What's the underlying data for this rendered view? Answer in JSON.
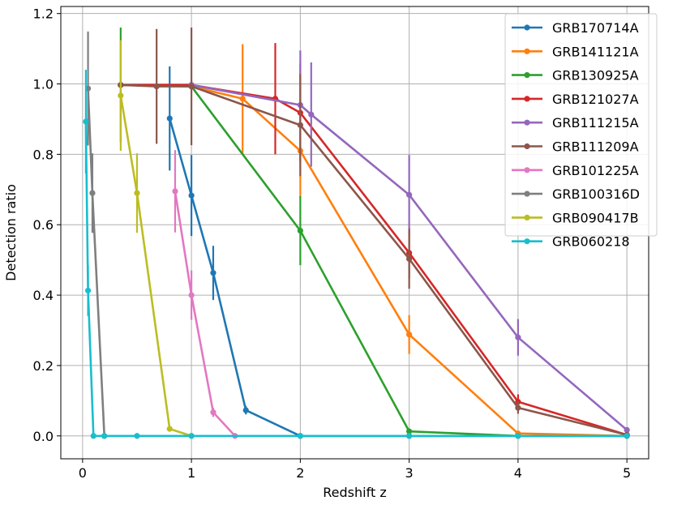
{
  "chart_data": {
    "type": "line",
    "title": "",
    "xlabel": "Redshift z",
    "ylabel": "Detection ratio",
    "xlim": [
      -0.2,
      5.2
    ],
    "ylim": [
      -0.065,
      1.22
    ],
    "xticks": [
      0,
      1,
      2,
      3,
      4,
      5
    ],
    "yticks": [
      0.0,
      0.2,
      0.4,
      0.6,
      0.8,
      1.0,
      1.2
    ],
    "xtick_labels": [
      "0",
      "1",
      "2",
      "3",
      "4",
      "5"
    ],
    "ytick_labels": [
      "0.0",
      "0.2",
      "0.4",
      "0.6",
      "0.8",
      "1.0",
      "1.2"
    ],
    "grid": true,
    "legend_position": "top-right",
    "series": [
      {
        "name": "GRB170714A",
        "color": "#1f77b4",
        "x": [
          0.8,
          1.0,
          1.2,
          1.5,
          2.0,
          3.0,
          4.0,
          5.0
        ],
        "y": [
          0.902,
          0.683,
          0.463,
          0.073,
          0.0,
          0.0,
          0.0,
          0.0
        ],
        "err": [
          0.148,
          0.115,
          0.077,
          0.012,
          0,
          0,
          0,
          0
        ]
      },
      {
        "name": "GRB141121A",
        "color": "#ff7f0e",
        "x": [
          0.35,
          1.0,
          1.47,
          2.0,
          3.0,
          4.0,
          5.0
        ],
        "y": [
          0.997,
          0.993,
          0.958,
          0.81,
          0.288,
          0.007,
          0.0
        ],
        "err": [
          0.003,
          0.007,
          0.155,
          0.135,
          0.055,
          0.004,
          0
        ]
      },
      {
        "name": "GRB130925A",
        "color": "#2ca02c",
        "x": [
          0.35,
          1.0,
          2.0,
          3.0,
          4.0,
          5.0
        ],
        "y": [
          0.997,
          0.993,
          0.583,
          0.013,
          0.0,
          0.0
        ],
        "err": [
          0.163,
          0.007,
          0.098,
          0.004,
          0,
          0
        ]
      },
      {
        "name": "GRB121027A",
        "color": "#d62728",
        "x": [
          0.35,
          1.0,
          1.77,
          2.0,
          3.0,
          4.0,
          5.0
        ],
        "y": [
          0.997,
          0.997,
          0.958,
          0.918,
          0.52,
          0.097,
          0.003
        ],
        "err": [
          0.003,
          0.003,
          0.158,
          0.14,
          0.072,
          0.021,
          0.002
        ]
      },
      {
        "name": "GRB111215A",
        "color": "#9467bd",
        "x": [
          1.0,
          2.0,
          2.1,
          3.0,
          4.0,
          5.0
        ],
        "y": [
          0.997,
          0.94,
          0.913,
          0.685,
          0.28,
          0.017
        ],
        "err": [
          0.003,
          0.155,
          0.148,
          0.113,
          0.052,
          0.005
        ]
      },
      {
        "name": "GRB111209A",
        "color": "#8c564b",
        "x": [
          0.35,
          0.68,
          1.0,
          2.0,
          3.0,
          4.0,
          5.0
        ],
        "y": [
          0.997,
          0.993,
          0.993,
          0.883,
          0.503,
          0.08,
          0.003
        ],
        "err": [
          0.003,
          0.163,
          0.167,
          0.145,
          0.085,
          0.017,
          0.002
        ]
      },
      {
        "name": "GRB101225A",
        "color": "#e377c2",
        "x": [
          0.85,
          1.0,
          1.2,
          1.4
        ],
        "y": [
          0.695,
          0.4,
          0.067,
          0.0
        ],
        "err": [
          0.117,
          0.07,
          0.013,
          0
        ]
      },
      {
        "name": "GRB100316D",
        "color": "#7f7f7f",
        "x": [
          0.05,
          0.09,
          0.2
        ],
        "y": [
          0.987,
          0.69,
          0.0
        ],
        "err": [
          0.162,
          0.113,
          0
        ]
      },
      {
        "name": "GRB090417B",
        "color": "#bcbd22",
        "x": [
          0.35,
          0.5,
          0.8,
          1.0
        ],
        "y": [
          0.967,
          0.69,
          0.02,
          0.0
        ],
        "err": [
          0.157,
          0.113,
          0.004,
          0
        ]
      },
      {
        "name": "GRB060218",
        "color": "#17becf",
        "x": [
          0.03,
          0.05,
          0.1,
          0.2,
          0.5,
          1.0,
          2.0,
          3.0,
          4.0,
          5.0
        ],
        "y": [
          0.893,
          0.413,
          0.0,
          0.0,
          0.0,
          0.0,
          0.0,
          0.0,
          0.0,
          0.0
        ],
        "err": [
          0.147,
          0.072,
          0,
          0,
          0,
          0,
          0,
          0,
          0,
          0
        ]
      }
    ]
  }
}
